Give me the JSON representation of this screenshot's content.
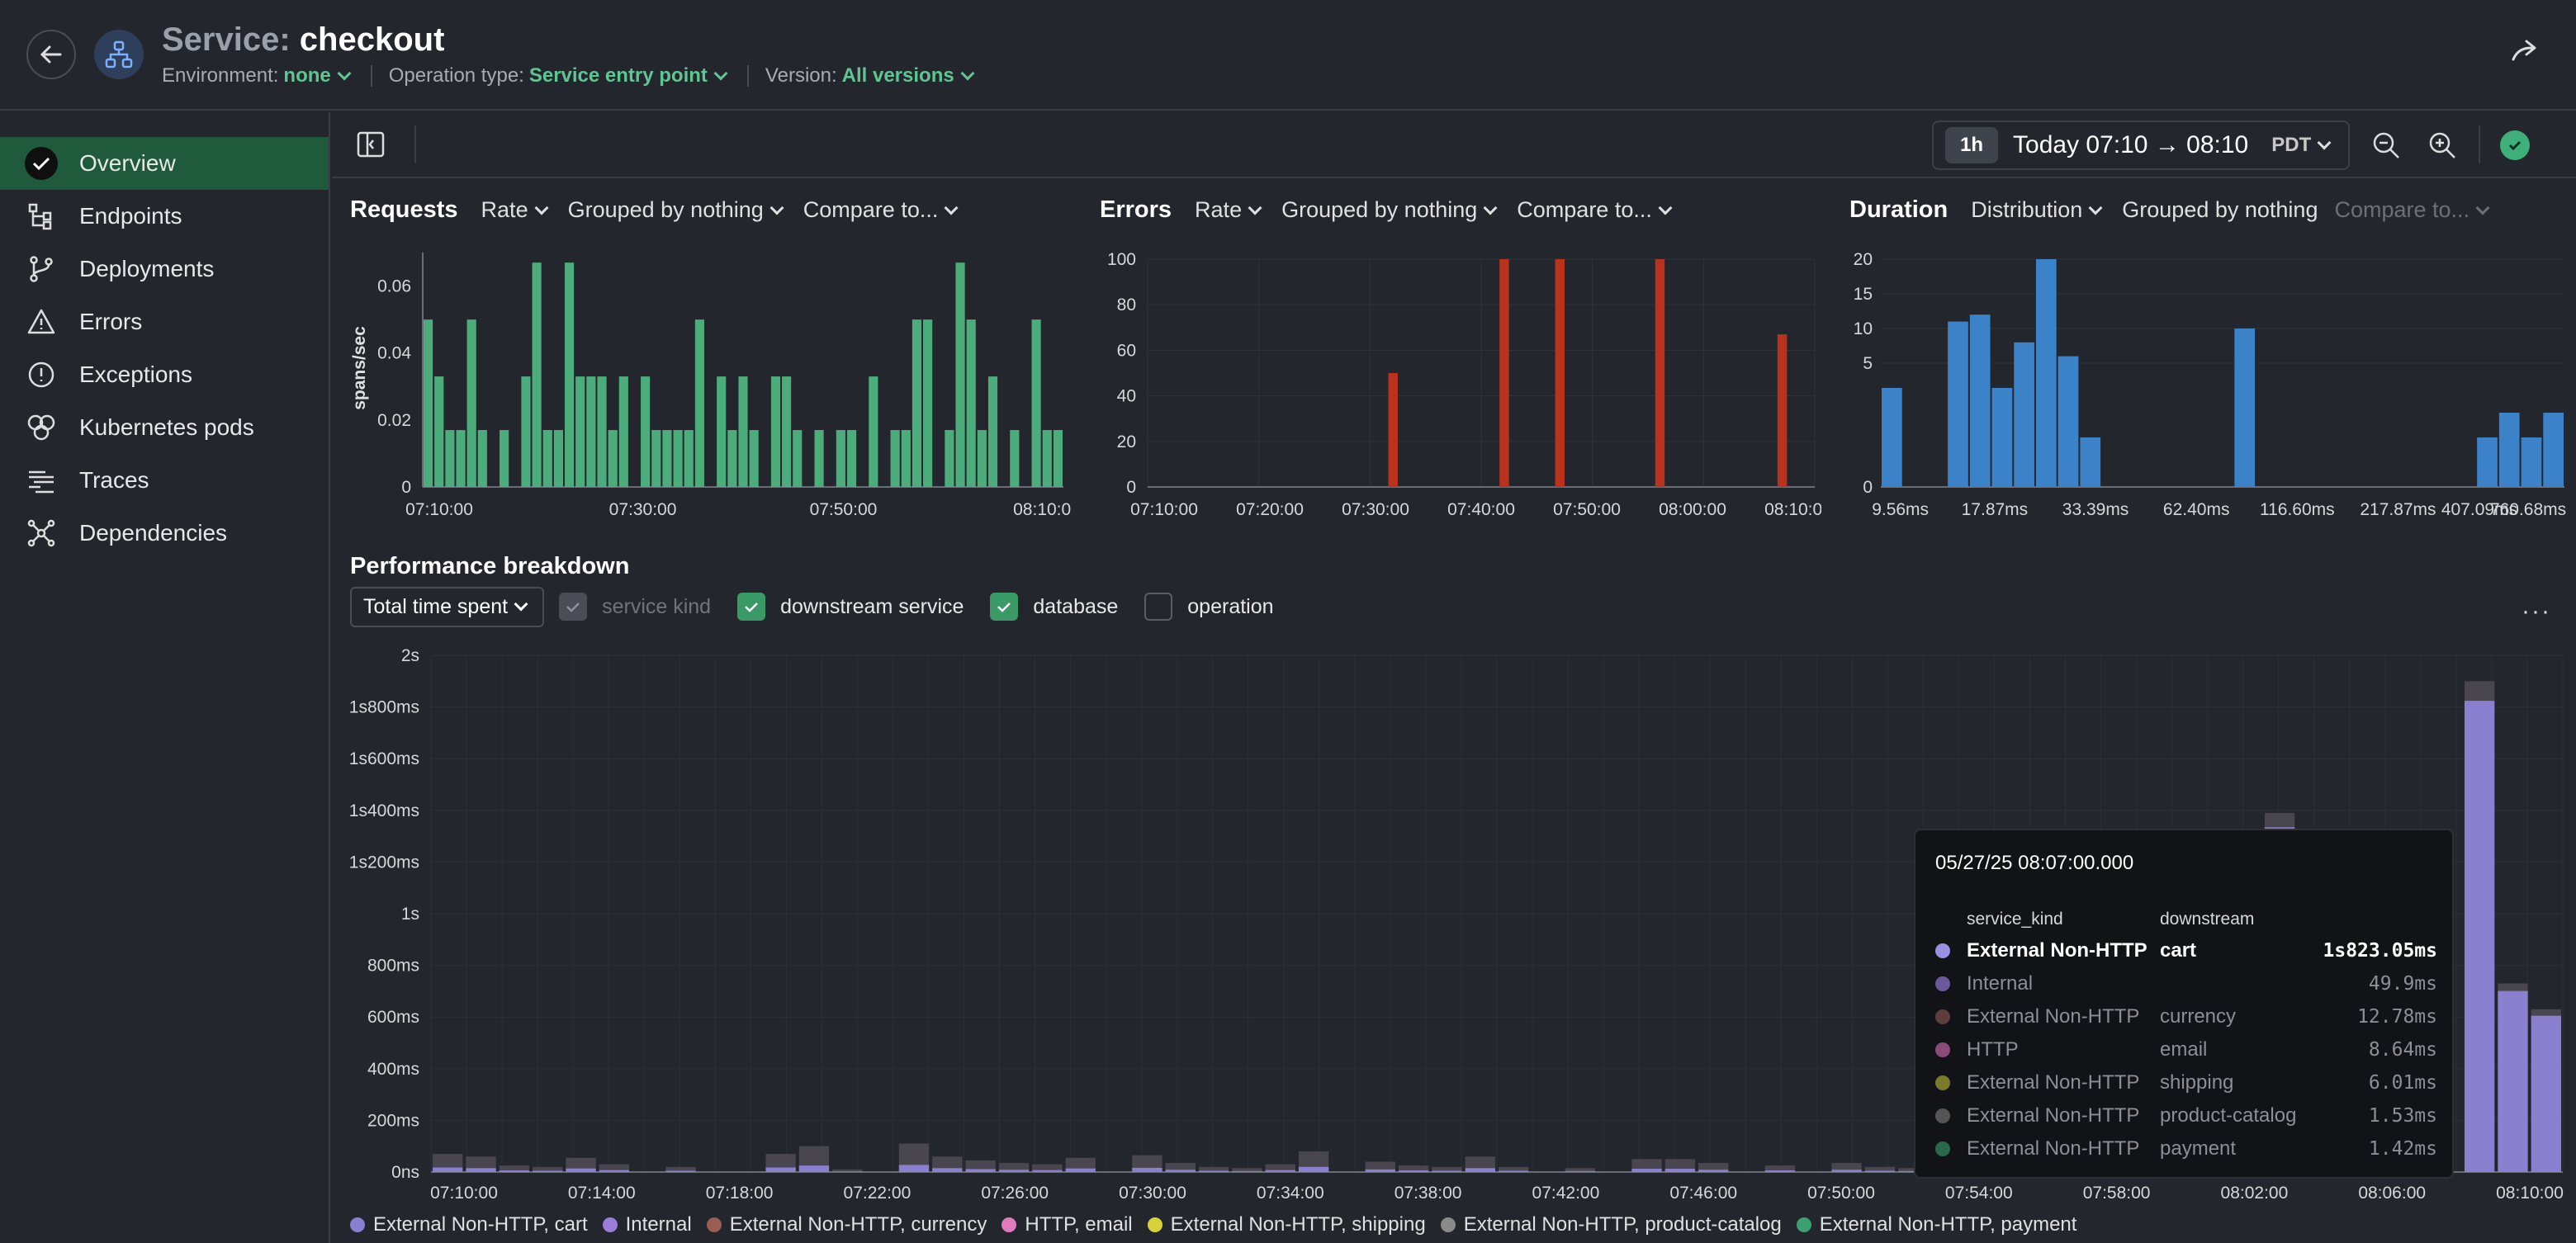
{
  "header": {
    "title_label": "Service:",
    "title_value": "checkout",
    "env_label": "Environment:",
    "env_value": "none",
    "optype_label": "Operation type:",
    "optype_value": "Service entry point",
    "version_label": "Version:",
    "version_value": "All versions"
  },
  "sidebar": {
    "items": [
      {
        "label": "Overview",
        "icon": "check-circle-icon"
      },
      {
        "label": "Endpoints",
        "icon": "endpoints-icon"
      },
      {
        "label": "Deployments",
        "icon": "branch-icon"
      },
      {
        "label": "Errors",
        "icon": "warning-icon"
      },
      {
        "label": "Exceptions",
        "icon": "exclamation-circle-icon"
      },
      {
        "label": "Kubernetes pods",
        "icon": "pods-icon"
      },
      {
        "label": "Traces",
        "icon": "traces-icon"
      },
      {
        "label": "Dependencies",
        "icon": "dependencies-icon"
      }
    ]
  },
  "toolbar": {
    "range_pill": "1h",
    "range_text": "Today 07:10 → 08:10",
    "timezone": "PDT"
  },
  "requests": {
    "title": "Requests",
    "rate": "Rate",
    "group": "Grouped by nothing",
    "compare": "Compare to..."
  },
  "errors": {
    "title": "Errors",
    "rate": "Rate",
    "group": "Grouped by nothing",
    "compare": "Compare to..."
  },
  "duration": {
    "title": "Duration",
    "mode": "Distribution",
    "group": "Grouped by nothing",
    "compare": "Compare to..."
  },
  "breakdown": {
    "title": "Performance breakdown",
    "select": "Total time spent",
    "checks": [
      {
        "label": "service kind",
        "state": "disabled"
      },
      {
        "label": "downstream service",
        "state": "on"
      },
      {
        "label": "database",
        "state": "on"
      },
      {
        "label": "operation",
        "state": "off"
      }
    ],
    "legend": [
      {
        "label": "External Non-HTTP, cart",
        "color": "#8b7fd0"
      },
      {
        "label": "Internal",
        "color": "#9a7ed8"
      },
      {
        "label": "External Non-HTTP, currency",
        "color": "#9a5e52"
      },
      {
        "label": "HTTP, email",
        "color": "#e07bc0"
      },
      {
        "label": "External Non-HTTP, shipping",
        "color": "#d8d23a"
      },
      {
        "label": "External Non-HTTP, product-catalog",
        "color": "#8a8a8a"
      },
      {
        "label": "External Non-HTTP, payment",
        "color": "#3aa070"
      }
    ]
  },
  "tooltip": {
    "date": "05/27/25 08:07:00.000",
    "col1": "service_kind",
    "col2": "downstream",
    "rows": [
      {
        "kind": "External Non-HTTP",
        "down": "cart",
        "value": "1s823.05ms",
        "color": "#9a90e0"
      },
      {
        "kind": "Internal",
        "down": "",
        "value": "49.9ms",
        "color": "#6a5a9a"
      },
      {
        "kind": "External Non-HTTP",
        "down": "currency",
        "value": "12.78ms",
        "color": "#5e3e3a"
      },
      {
        "kind": "HTTP",
        "down": "email",
        "value": "8.64ms",
        "color": "#8a4a7a"
      },
      {
        "kind": "External Non-HTTP",
        "down": "shipping",
        "value": "6.01ms",
        "color": "#7a7a2a"
      },
      {
        "kind": "External Non-HTTP",
        "down": "product-catalog",
        "value": "1.53ms",
        "color": "#555555"
      },
      {
        "kind": "External Non-HTTP",
        "down": "payment",
        "value": "1.42ms",
        "color": "#2a6a4a"
      }
    ]
  },
  "chart_data": [
    {
      "type": "bar",
      "name": "requests",
      "ylabel": "spans/sec",
      "ylim": [
        0,
        0.07
      ],
      "yticks": [
        "0",
        "0.02",
        "0.04",
        "0.06"
      ],
      "xticks": [
        "07:10:00",
        "07:30:00",
        "07:50:00",
        "08:10:00"
      ],
      "values": [
        0.05,
        0.033,
        0.017,
        0.017,
        0.05,
        0.017,
        0,
        0.017,
        0,
        0.033,
        0.067,
        0.017,
        0.017,
        0.067,
        0.033,
        0.033,
        0.033,
        0.017,
        0.033,
        0,
        0.033,
        0.017,
        0.017,
        0.017,
        0.017,
        0.05,
        0,
        0.033,
        0.017,
        0.033,
        0.017,
        0,
        0.033,
        0.033,
        0.017,
        0,
        0.017,
        0,
        0.017,
        0.017,
        0,
        0.033,
        0,
        0.017,
        0.017,
        0.05,
        0.05,
        0,
        0.017,
        0.067,
        0.05,
        0.017,
        0.033,
        0,
        0.017,
        0,
        0.05,
        0.017,
        0.017
      ],
      "color": "#4dac7c"
    },
    {
      "type": "bar",
      "name": "errors",
      "ylim": [
        0,
        100
      ],
      "yticks": [
        "0",
        "20",
        "40",
        "60",
        "80",
        "100"
      ],
      "xticks": [
        "07:10:00",
        "07:20:00",
        "07:30:00",
        "07:40:00",
        "07:50:00",
        "08:00:00",
        "08:10:00"
      ],
      "points": [
        {
          "t": 13,
          "v": 50
        },
        {
          "t": 23,
          "v": 100
        },
        {
          "t": 28,
          "v": 100
        },
        {
          "t": 37,
          "v": 100
        },
        {
          "t": 48,
          "v": 67
        }
      ],
      "color": "#b8321e"
    },
    {
      "type": "bar",
      "name": "duration",
      "yticks": [
        "0",
        "5",
        "10",
        "15",
        "20"
      ],
      "xticks": [
        "9.56ms",
        "17.87ms",
        "33.39ms",
        "62.40ms",
        "116.60ms",
        "217.87ms",
        "407.09ms",
        "760.68ms"
      ],
      "values": [
        4,
        0,
        0,
        11,
        12,
        4,
        8,
        20,
        6,
        2,
        0,
        0,
        0,
        0,
        0,
        0,
        10,
        0,
        0,
        0,
        0,
        0,
        0,
        0,
        0,
        0,
        0,
        2,
        3,
        2,
        3
      ],
      "color": "#3b82c8"
    },
    {
      "type": "bar",
      "name": "performance-breakdown",
      "ylim": [
        0,
        2000
      ],
      "yticks": [
        "0ns",
        "200ms",
        "400ms",
        "600ms",
        "800ms",
        "1s",
        "1s200ms",
        "1s400ms",
        "1s600ms",
        "1s800ms",
        "2s"
      ],
      "xticks": [
        "07:10:00",
        "07:14:00",
        "07:18:00",
        "07:22:00",
        "07:26:00",
        "07:30:00",
        "07:34:00",
        "07:38:00",
        "07:42:00",
        "07:46:00",
        "07:50:00",
        "07:54:00",
        "07:58:00",
        "08:02:00",
        "08:06:00",
        "08:10:00"
      ],
      "values": [
        70,
        60,
        25,
        20,
        55,
        30,
        0,
        20,
        0,
        0,
        70,
        100,
        10,
        0,
        110,
        60,
        45,
        35,
        30,
        55,
        0,
        65,
        35,
        20,
        15,
        30,
        80,
        0,
        40,
        25,
        20,
        60,
        20,
        0,
        15,
        0,
        50,
        50,
        35,
        0,
        25,
        0,
        35,
        20,
        15,
        0,
        0,
        0,
        0,
        0,
        0,
        0,
        0,
        0,
        0,
        1390,
        0,
        0,
        0,
        0,
        0,
        1900,
        730,
        630
      ],
      "color": "#8b7fd0"
    }
  ]
}
